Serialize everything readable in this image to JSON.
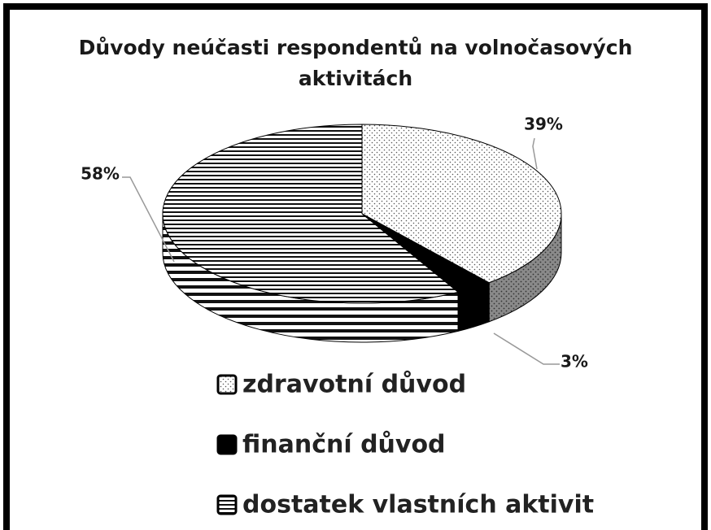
{
  "chart_data": {
    "type": "pie3d",
    "title": [
      "Důvody neúčasti respondentů na volnočasových",
      "aktivitách"
    ],
    "categories": [
      "zdravotní důvod",
      "finanční důvod",
      "dostatek vlastních aktivit"
    ],
    "values": [
      39,
      3,
      58
    ],
    "value_labels": [
      "39%",
      "3%",
      "58%"
    ],
    "patterns": [
      "dots",
      "solid",
      "stripes"
    ],
    "legend": "bottom"
  }
}
